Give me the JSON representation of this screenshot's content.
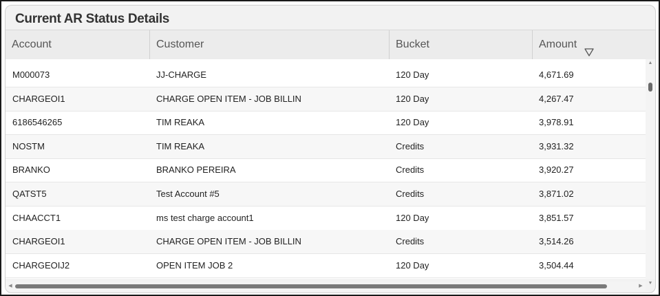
{
  "panel": {
    "title": "Current AR Status Details"
  },
  "columns": [
    {
      "label": "Account"
    },
    {
      "label": "Customer"
    },
    {
      "label": "Bucket"
    },
    {
      "label": "Amount"
    }
  ],
  "filter_icon": "filter-funnel-icon",
  "rows": [
    {
      "account": "M000073",
      "customer": "JJ-CHARGE",
      "bucket": "120 Day",
      "amount": "4,671.69"
    },
    {
      "account": "CHARGEOI1",
      "customer": "CHARGE OPEN ITEM - JOB BILLIN",
      "bucket": "120 Day",
      "amount": "4,267.47"
    },
    {
      "account": "6186546265",
      "customer": "TIM REAKA",
      "bucket": "120 Day",
      "amount": "3,978.91"
    },
    {
      "account": "NOSTM",
      "customer": "TIM REAKA",
      "bucket": "Credits",
      "amount": "3,931.32"
    },
    {
      "account": "BRANKO",
      "customer": "BRANKO PEREIRA",
      "bucket": "Credits",
      "amount": "3,920.27"
    },
    {
      "account": "QATST5",
      "customer": "Test Account #5",
      "bucket": "Credits",
      "amount": "3,871.02"
    },
    {
      "account": "CHAACCT1",
      "customer": "ms test charge account1",
      "bucket": "120 Day",
      "amount": "3,851.57"
    },
    {
      "account": "CHARGEOI1",
      "customer": "CHARGE OPEN ITEM - JOB BILLIN",
      "bucket": "Credits",
      "amount": "3,514.26"
    },
    {
      "account": "CHARGEOIJ2",
      "customer": "OPEN ITEM JOB 2",
      "bucket": "120 Day",
      "amount": "3,504.44"
    }
  ]
}
